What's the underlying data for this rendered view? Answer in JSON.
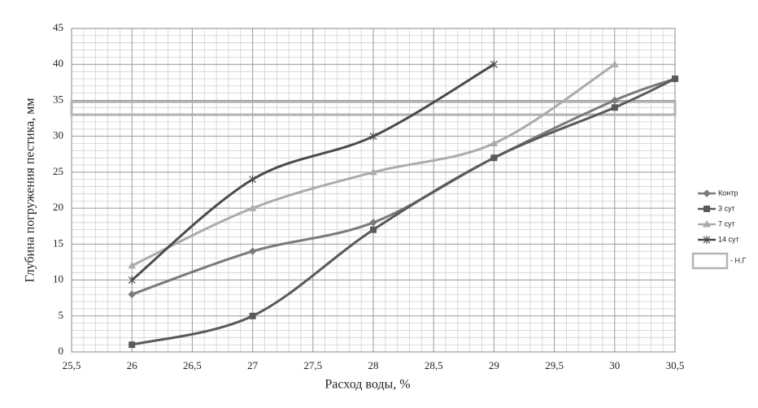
{
  "chart_data": {
    "type": "line",
    "xlabel": "Расход воды, %",
    "ylabel": "Глубина погружения пестика, мм",
    "xlim": [
      25.5,
      30.5
    ],
    "xticks": [
      {
        "value": 25.5,
        "label": "25,5"
      },
      26,
      {
        "value": 26.5,
        "label": "26,5"
      },
      27,
      {
        "value": 27.5,
        "label": "27,5"
      },
      28,
      {
        "value": 28.5,
        "label": "28,5"
      },
      29,
      {
        "value": 29.5,
        "label": "29,5"
      },
      30,
      {
        "value": 30.5,
        "label": "30,5"
      }
    ],
    "ylim": [
      0,
      45
    ],
    "yticks": [
      0,
      5,
      10,
      15,
      20,
      25,
      30,
      35,
      40,
      45
    ],
    "grid": true,
    "legend": "right",
    "series": [
      {
        "name": "Контр",
        "color": "#7a7a7a",
        "marker": "diamond",
        "x": [
          26,
          27,
          28,
          29,
          30,
          30.5
        ],
        "values": [
          8,
          14,
          18,
          27,
          35,
          38
        ]
      },
      {
        "name": "3 сут",
        "color": "#5a5a5a",
        "marker": "square",
        "x": [
          26,
          27,
          28,
          29,
          30,
          30.5
        ],
        "values": [
          1,
          5,
          17,
          27,
          34,
          38
        ]
      },
      {
        "name": "7 сут",
        "color": "#ababab",
        "marker": "triangle",
        "x": [
          26,
          27,
          28,
          29,
          30
        ],
        "values": [
          12,
          20,
          25,
          29,
          40
        ]
      },
      {
        "name": "14 сут",
        "color": "#4a4a4a",
        "marker": "star",
        "x": [
          26,
          27,
          28,
          29
        ],
        "values": [
          10,
          24,
          30,
          40
        ]
      }
    ],
    "band": {
      "name": "- Н.Г",
      "color": "#b3b3b3",
      "lower": 33,
      "upper": 34.8
    }
  }
}
